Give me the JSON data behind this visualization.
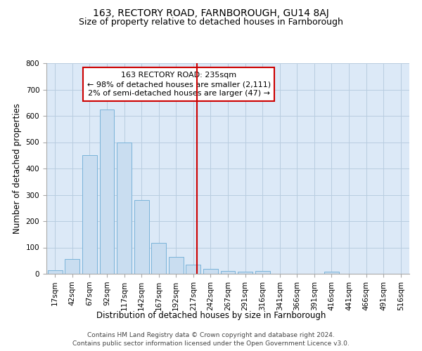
{
  "title": "163, RECTORY ROAD, FARNBOROUGH, GU14 8AJ",
  "subtitle": "Size of property relative to detached houses in Farnborough",
  "xlabel": "Distribution of detached houses by size in Farnborough",
  "ylabel": "Number of detached properties",
  "bar_values": [
    13,
    55,
    450,
    625,
    500,
    280,
    118,
    63,
    35,
    20,
    10,
    7,
    10,
    0,
    0,
    0,
    8,
    0,
    0,
    0,
    0
  ],
  "bar_labels": [
    "17sqm",
    "42sqm",
    "67sqm",
    "92sqm",
    "117sqm",
    "142sqm",
    "167sqm",
    "192sqm",
    "217sqm",
    "242sqm",
    "267sqm",
    "291sqm",
    "316sqm",
    "341sqm",
    "366sqm",
    "391sqm",
    "416sqm",
    "441sqm",
    "466sqm",
    "491sqm",
    "516sqm"
  ],
  "bar_color": "#c9ddf0",
  "bar_edge_color": "#7ab3d9",
  "annotation_text_line1": "163 RECTORY ROAD: 235sqm",
  "annotation_text_line2": "← 98% of detached houses are smaller (2,111)",
  "annotation_text_line3": "2% of semi-detached houses are larger (47) →",
  "annotation_box_color": "#ffffff",
  "annotation_box_edge_color": "#cc0000",
  "vline_color": "#cc0000",
  "vline_x": 8.72,
  "ylim": [
    0,
    800
  ],
  "yticks": [
    0,
    100,
    200,
    300,
    400,
    500,
    600,
    700,
    800
  ],
  "bg_color": "#dce9f7",
  "background_color": "#ffffff",
  "grid_color": "#b8cde0",
  "footer_line1": "Contains HM Land Registry data © Crown copyright and database right 2024.",
  "footer_line2": "Contains public sector information licensed under the Open Government Licence v3.0.",
  "title_fontsize": 10,
  "subtitle_fontsize": 9,
  "axis_label_fontsize": 8.5,
  "tick_fontsize": 7.5,
  "annotation_fontsize": 8,
  "footer_fontsize": 6.5
}
